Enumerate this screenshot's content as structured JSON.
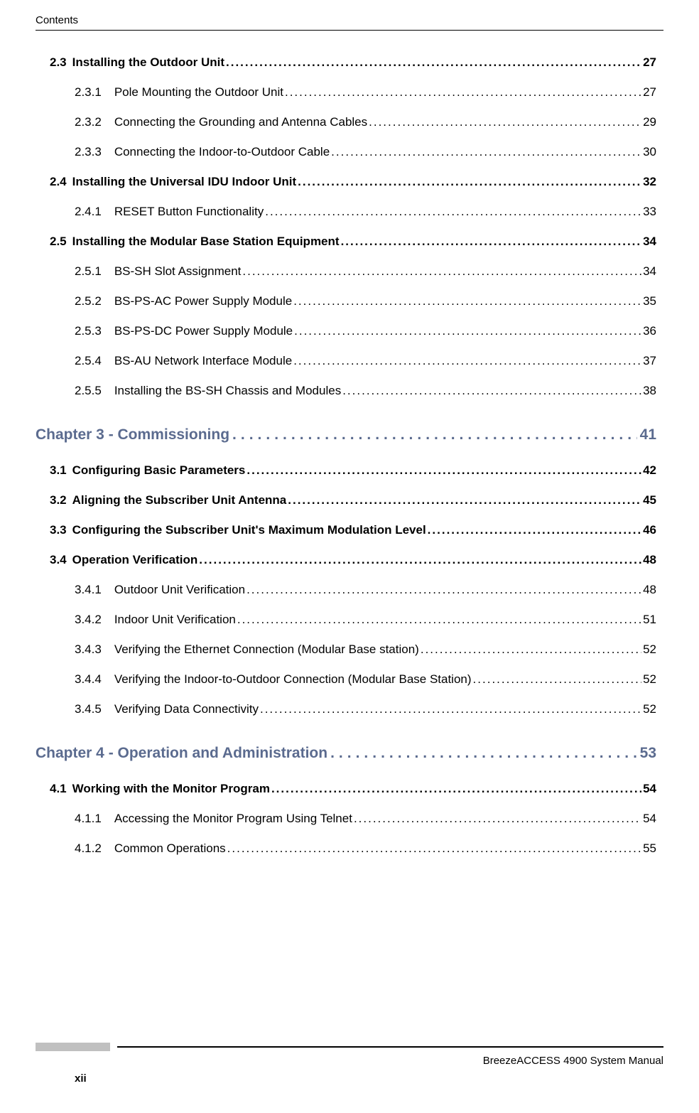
{
  "header": {
    "label": "Contents"
  },
  "toc": [
    {
      "type": "section",
      "number": "2.3",
      "title": "Installing the Outdoor Unit",
      "page": "27"
    },
    {
      "type": "subsection",
      "number": "2.3.1",
      "title": "Pole Mounting the Outdoor Unit",
      "page": "27"
    },
    {
      "type": "subsection",
      "number": "2.3.2",
      "title": "Connecting the Grounding and Antenna Cables",
      "page": "29"
    },
    {
      "type": "subsection",
      "number": "2.3.3",
      "title": "Connecting the Indoor-to-Outdoor Cable",
      "page": "30"
    },
    {
      "type": "section",
      "number": "2.4",
      "title": "Installing the Universal IDU Indoor Unit",
      "page": "32"
    },
    {
      "type": "subsection",
      "number": "2.4.1",
      "title": "RESET Button Functionality",
      "page": "33"
    },
    {
      "type": "section",
      "number": "2.5",
      "title": "Installing the Modular Base Station Equipment",
      "page": "34"
    },
    {
      "type": "subsection",
      "number": "2.5.1",
      "title": "BS-SH Slot Assignment",
      "page": "34"
    },
    {
      "type": "subsection",
      "number": "2.5.2",
      "title": "BS-PS-AC Power Supply Module",
      "page": "35"
    },
    {
      "type": "subsection",
      "number": "2.5.3",
      "title": "BS-PS-DC Power Supply Module",
      "page": "36"
    },
    {
      "type": "subsection",
      "number": "2.5.4",
      "title": "BS-AU Network Interface Module",
      "page": "37"
    },
    {
      "type": "subsection",
      "number": "2.5.5",
      "title": "Installing the BS-SH Chassis and Modules",
      "page": "38"
    },
    {
      "type": "chapter",
      "number": "",
      "title": "Chapter 3 - Commissioning",
      "page": "41"
    },
    {
      "type": "section",
      "number": "3.1",
      "title": "Configuring Basic Parameters",
      "page": "42"
    },
    {
      "type": "section",
      "number": "3.2",
      "title": "Aligning the Subscriber Unit Antenna",
      "page": "45"
    },
    {
      "type": "section",
      "number": "3.3",
      "title": "Configuring the Subscriber Unit's Maximum Modulation Level",
      "page": "46"
    },
    {
      "type": "section",
      "number": "3.4",
      "title": "Operation Verification",
      "page": "48"
    },
    {
      "type": "subsection",
      "number": "3.4.1",
      "title": "Outdoor Unit Verification",
      "page": "48"
    },
    {
      "type": "subsection",
      "number": "3.4.2",
      "title": "Indoor Unit Verification",
      "page": "51"
    },
    {
      "type": "subsection",
      "number": "3.4.3",
      "title": "Verifying the Ethernet Connection (Modular Base station)",
      "page": "52"
    },
    {
      "type": "subsection",
      "number": "3.4.4",
      "title": "Verifying the Indoor-to-Outdoor Connection (Modular Base Station)",
      "page": "52"
    },
    {
      "type": "subsection",
      "number": "3.4.5",
      "title": "Verifying Data Connectivity",
      "page": "52"
    },
    {
      "type": "chapter",
      "number": "",
      "title": "Chapter 4 - Operation and Administration",
      "page": "53"
    },
    {
      "type": "section",
      "number": "4.1",
      "title": "Working with the Monitor Program",
      "page": "54"
    },
    {
      "type": "subsection",
      "number": "4.1.1",
      "title": "Accessing the Monitor Program Using Telnet",
      "page": "54"
    },
    {
      "type": "subsection",
      "number": "4.1.2",
      "title": "Common Operations",
      "page": "55"
    }
  ],
  "footer": {
    "manual_name": "BreezeACCESS 4900 System Manual",
    "page_number": "xii"
  },
  "colors": {
    "chapter_color": "#5b6b8f",
    "text_color": "#000000",
    "background": "#ffffff",
    "gray_box": "#c0c0c0"
  }
}
